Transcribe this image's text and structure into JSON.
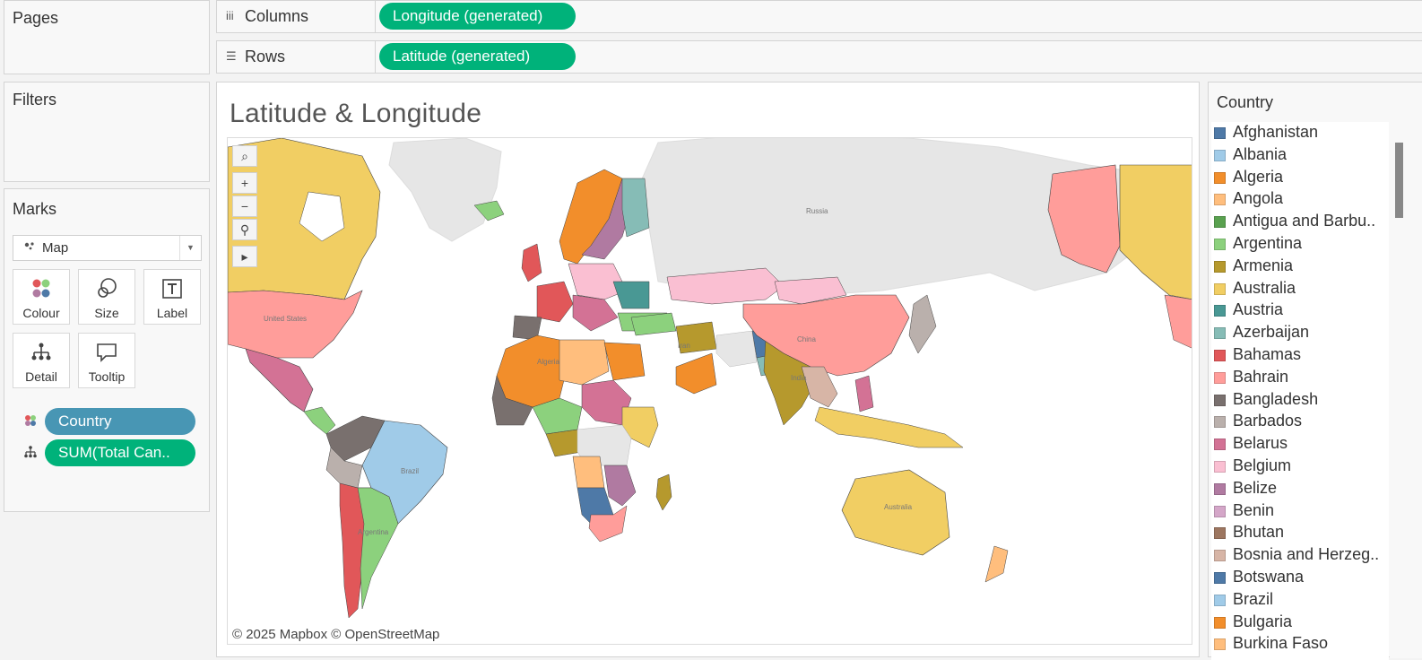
{
  "pages_title": "Pages",
  "filters_title": "Filters",
  "marks": {
    "title": "Marks",
    "type": "Map",
    "buttons": {
      "colour": "Colour",
      "size": "Size",
      "label": "Label",
      "detail": "Detail",
      "tooltip": "Tooltip"
    },
    "pills": [
      "Country",
      "SUM(Total Can.."
    ]
  },
  "shelves": {
    "columns_label": "Columns",
    "columns_pill": "Longitude (generated)",
    "rows_label": "Rows",
    "rows_pill": "Latitude (generated)"
  },
  "sheet_title": "Latitude & Longitude",
  "map": {
    "attribution": "© 2025 Mapbox © OpenStreetMap",
    "labels": [
      "Russia",
      "Iran",
      "China",
      "Brazil",
      "Australia",
      "United States",
      "Algeria",
      "India",
      "Argentina"
    ]
  },
  "legend": {
    "title": "Country",
    "items": [
      {
        "label": "Afghanistan",
        "color": "#4e79a7"
      },
      {
        "label": "Albania",
        "color": "#a0cbe8"
      },
      {
        "label": "Algeria",
        "color": "#f28e2b"
      },
      {
        "label": "Angola",
        "color": "#ffbe7d"
      },
      {
        "label": "Antigua and Barbu..",
        "color": "#59a14f"
      },
      {
        "label": "Argentina",
        "color": "#8cd17d"
      },
      {
        "label": "Armenia",
        "color": "#b6992d"
      },
      {
        "label": "Australia",
        "color": "#f1ce63"
      },
      {
        "label": "Austria",
        "color": "#499894"
      },
      {
        "label": "Azerbaijan",
        "color": "#86bcb6"
      },
      {
        "label": "Bahamas",
        "color": "#e15759"
      },
      {
        "label": "Bahrain",
        "color": "#ff9d9a"
      },
      {
        "label": "Bangladesh",
        "color": "#79706e"
      },
      {
        "label": "Barbados",
        "color": "#bab0ac"
      },
      {
        "label": "Belarus",
        "color": "#d37295"
      },
      {
        "label": "Belgium",
        "color": "#fabfd2"
      },
      {
        "label": "Belize",
        "color": "#b07aa1"
      },
      {
        "label": "Benin",
        "color": "#d4a6c8"
      },
      {
        "label": "Bhutan",
        "color": "#9d7660"
      },
      {
        "label": "Bosnia and Herzeg..",
        "color": "#d7b5a6"
      },
      {
        "label": "Botswana",
        "color": "#4e79a7"
      },
      {
        "label": "Brazil",
        "color": "#a0cbe8"
      },
      {
        "label": "Bulgaria",
        "color": "#f28e2b"
      },
      {
        "label": "Burkina Faso",
        "color": "#ffbe7d"
      }
    ]
  }
}
